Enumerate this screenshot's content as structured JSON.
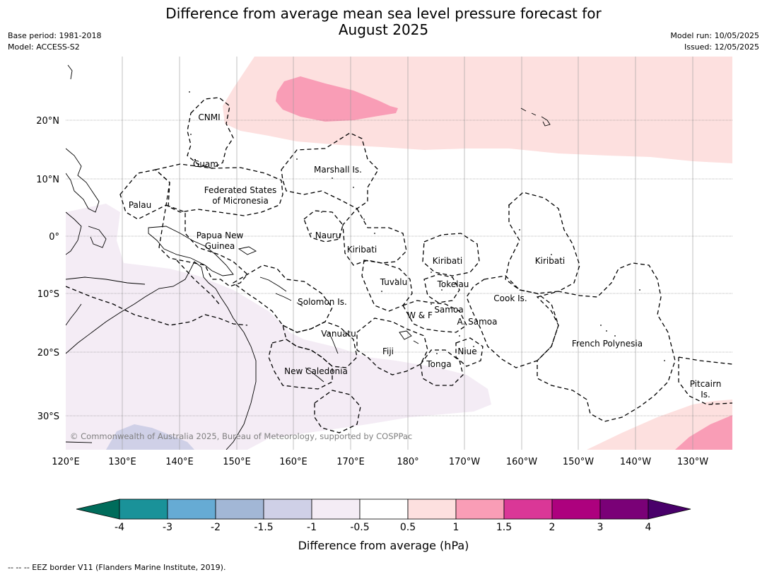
{
  "title_line1": "Difference from average mean sea level pressure forecast for",
  "title_line2": "August 2025",
  "base_period": "Base period: 1981-2018",
  "model": "Model: ACCESS-S2",
  "model_run": "Model run: 10/05/2025",
  "issued": "Issued: 12/05/2025",
  "copyright": "© Commonwealth of Australia 2025, Bureau of Meteorology, supported by COSPPac",
  "lon_ticks": [
    "120°E",
    "130°E",
    "140°E",
    "150°E",
    "160°E",
    "170°E",
    "180°",
    "170°W",
    "160°W",
    "150°W",
    "140°W",
    "130°W"
  ],
  "lat_ticks": [
    "20°N",
    "10°N",
    "0°",
    "10°S",
    "20°S",
    "30°S"
  ],
  "region_labels": [
    "CNMI",
    "Guam",
    "Marshall Is.",
    "Palau",
    "Federated States",
    "of Micronesia",
    "Papua New",
    "Guinea",
    "Nauru",
    "Kiribati",
    "Kiribati",
    "Kiribati",
    "Tuvalu",
    "Tokelau",
    "Solomon Is.",
    "Samoa",
    "W & F",
    "A. Samoa",
    "Cook Is.",
    "Vanuatu",
    "Fiji",
    "Niue",
    "Tonga",
    "French Polynesia",
    "New Caledonia",
    "Pitcairn",
    "Is."
  ],
  "colorbar": {
    "tick_labels": [
      "-4",
      "-3",
      "-2",
      "-1.5",
      "-1",
      "-0.5",
      "0.5",
      "1",
      "1.5",
      "2",
      "3",
      "4"
    ],
    "colors": [
      "#1a9299",
      "#66abd4",
      "#a2b7d6",
      "#cfd0e7",
      "#f4ecf5",
      "#ffffff",
      "#fde0df",
      "#f99db6",
      "#da3797",
      "#ad017e",
      "#7a0177"
    ],
    "under_color": "#006c5b",
    "over_color": "#49006a",
    "label": "Difference from average (hPa)"
  },
  "footnote": "--  --  -- EEZ border V11 (Flanders Marine Institute, 2019)."
}
